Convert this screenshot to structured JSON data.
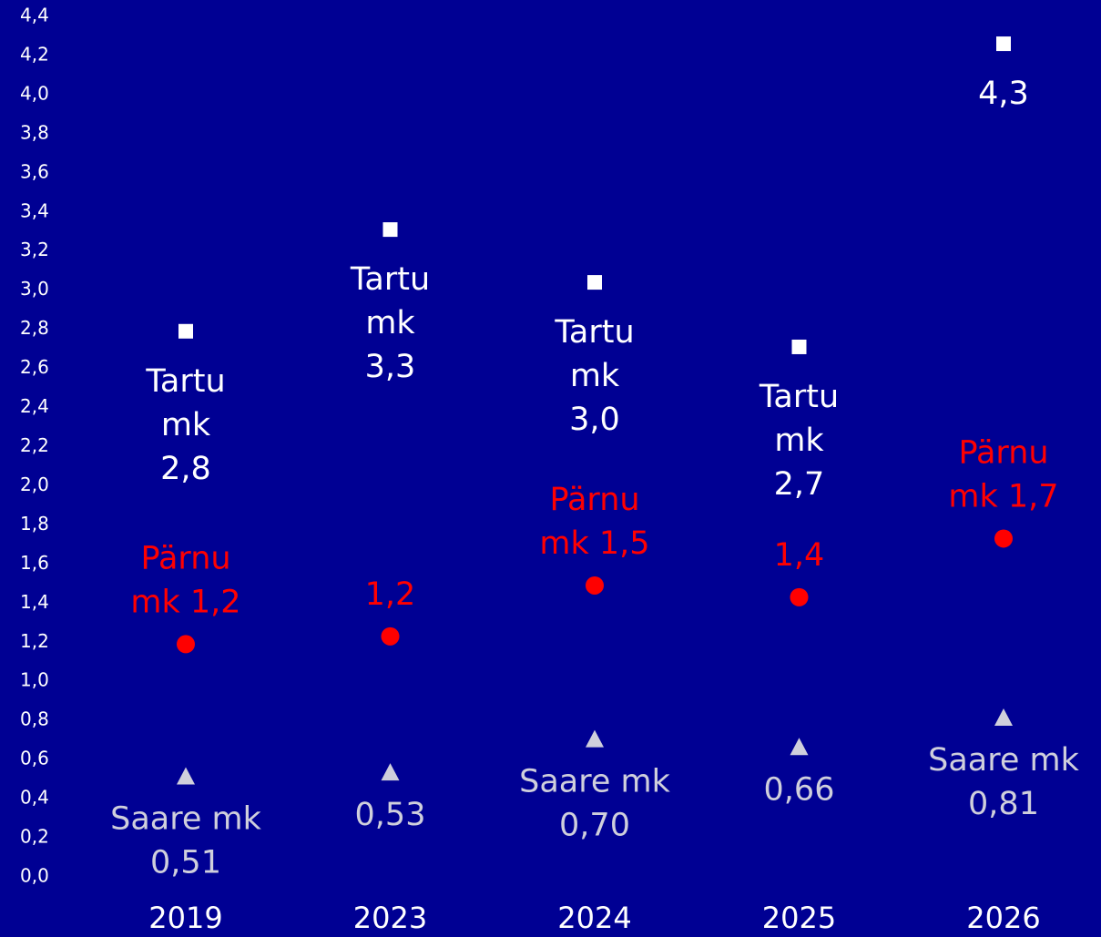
{
  "chart_data": {
    "type": "line",
    "categories": [
      "2019",
      "2023",
      "2024",
      "2025",
      "2026"
    ],
    "ylim": [
      0,
      4.4
    ],
    "yticks": [
      {
        "value": 0,
        "label": "0,0"
      },
      {
        "value": 0.2,
        "label": "0,2"
      },
      {
        "value": 0.4,
        "label": "0,4"
      },
      {
        "value": 0.6,
        "label": "0,6"
      },
      {
        "value": 0.8,
        "label": "0,8"
      },
      {
        "value": 1.0,
        "label": "1,0"
      },
      {
        "value": 1.2,
        "label": "1,2"
      },
      {
        "value": 1.4,
        "label": "1,4"
      },
      {
        "value": 1.6,
        "label": "1,6"
      },
      {
        "value": 1.8,
        "label": "1,8"
      },
      {
        "value": 2.0,
        "label": "2,0"
      },
      {
        "value": 2.2,
        "label": "2,2"
      },
      {
        "value": 2.4,
        "label": "2,4"
      },
      {
        "value": 2.6,
        "label": "2,6"
      },
      {
        "value": 2.8,
        "label": "2,8"
      },
      {
        "value": 3.0,
        "label": "3,0"
      },
      {
        "value": 3.2,
        "label": "3,2"
      },
      {
        "value": 3.4,
        "label": "3,4"
      },
      {
        "value": 3.6,
        "label": "3,6"
      },
      {
        "value": 3.8,
        "label": "3,8"
      },
      {
        "value": 4.0,
        "label": "4,0"
      },
      {
        "value": 4.2,
        "label": "4,2"
      },
      {
        "value": 4.4,
        "label": "4,4"
      }
    ],
    "grid": false,
    "series": [
      {
        "color": "#ffffff",
        "marker": "square",
        "dashed": false,
        "label_position": "below",
        "values": [
          2.79,
          3.31,
          3.04,
          2.71,
          4.26
        ],
        "value_labels": [
          "Tartu\nmk\n2,8",
          "Tartu\nmk\n3,3",
          "Tartu\nmk\n3,0",
          "Tartu\nmk\n2,7",
          "4,3"
        ]
      },
      {
        "color": "#ff0000",
        "marker": "circle",
        "dashed": true,
        "label_position": "above",
        "values": [
          1.19,
          1.23,
          1.49,
          1.43,
          1.73
        ],
        "value_labels": [
          "Pärnu\nmk 1,2",
          "1,2",
          "Pärnu\nmk 1,5",
          "1,4",
          "Pärnu\nmk 1,7"
        ]
      },
      {
        "color": "#cfcfdc",
        "marker": "triangle",
        "dashed": true,
        "label_position": "below",
        "values": [
          0.51,
          0.53,
          0.7,
          0.66,
          0.81
        ],
        "value_labels": [
          "Saare mk\n0,51",
          "0,53",
          "Saare mk\n0,70",
          "0,66",
          "Saare mk\n0,81"
        ]
      }
    ]
  }
}
